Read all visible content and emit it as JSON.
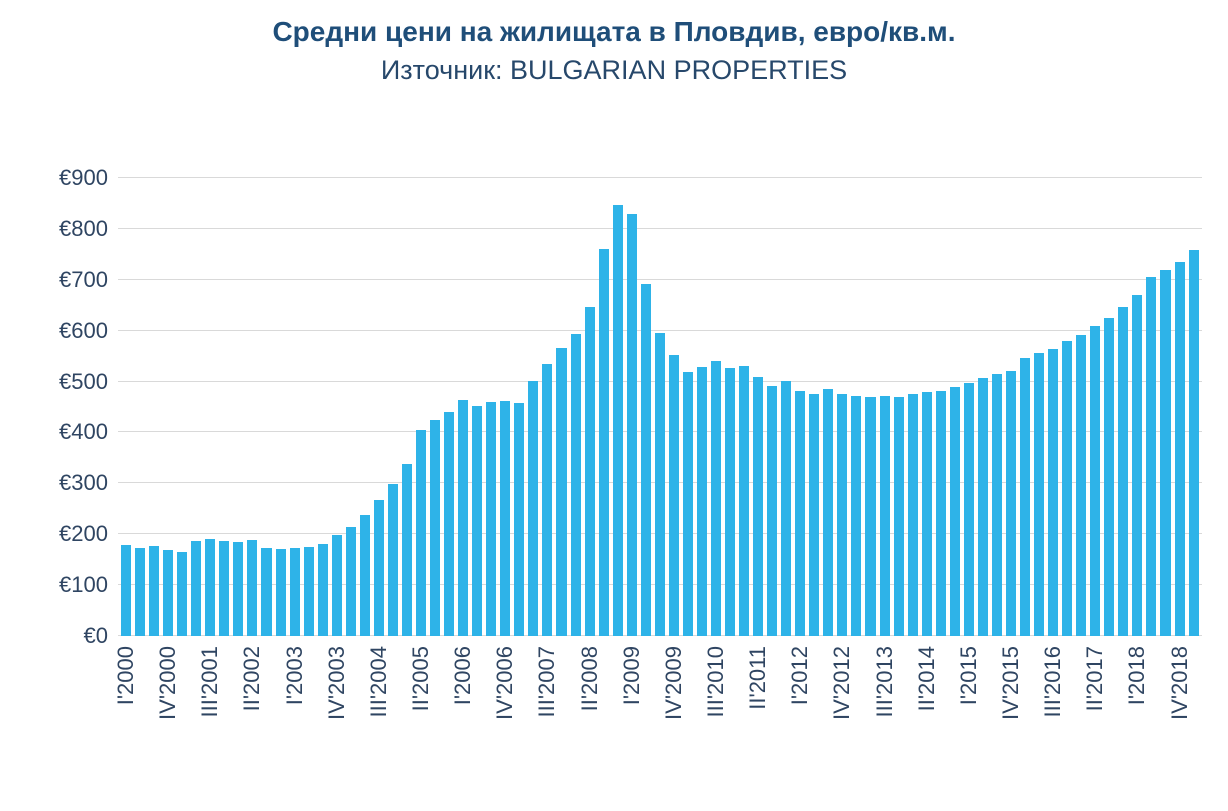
{
  "colors": {
    "bar": "#2EB3E8",
    "title": "#1F4E79",
    "tick_label": "#2F4562",
    "gridline": "#D9D9D9",
    "background": "#FFFFFF"
  },
  "chart_data": {
    "type": "bar",
    "title": "Средни цени на жилищата в Пловдив, евро/кв.м.",
    "subtitle": "Източник: BULGARIAN PROPERTIES",
    "currency_prefix": "€",
    "ylabel": "",
    "xlabel": "",
    "ylim": [
      0,
      900
    ],
    "y_ticks": [
      0,
      100,
      200,
      300,
      400,
      500,
      600,
      700,
      800,
      900
    ],
    "y_tick_labels": [
      "€0",
      "€100",
      "€200",
      "€300",
      "€400",
      "€500",
      "€600",
      "€700",
      "€800",
      "€900"
    ],
    "grid": "horizontal",
    "legend": "none",
    "x_tick_every": 3,
    "x_tick_labels": [
      "I'2000",
      "IV'2000",
      "III'2001",
      "II'2002",
      "I'2003",
      "IV'2003",
      "III'2004",
      "II'2005",
      "I'2006",
      "IV'2006",
      "III'2007",
      "II'2008",
      "I'2009",
      "IV'2009",
      "III'2010",
      "II'2011",
      "I'2012",
      "IV'2012",
      "III'2013",
      "II'2014",
      "I'2015",
      "IV'2015",
      "III'2016",
      "II'2017",
      "I'2018",
      "IV'2018"
    ],
    "categories": [
      "I'2000",
      "II'2000",
      "III'2000",
      "IV'2000",
      "I'2001",
      "II'2001",
      "III'2001",
      "IV'2001",
      "I'2002",
      "II'2002",
      "III'2002",
      "IV'2002",
      "I'2003",
      "II'2003",
      "III'2003",
      "IV'2003",
      "I'2004",
      "II'2004",
      "III'2004",
      "IV'2004",
      "I'2005",
      "II'2005",
      "III'2005",
      "IV'2005",
      "I'2006",
      "II'2006",
      "III'2006",
      "IV'2006",
      "I'2007",
      "II'2007",
      "III'2007",
      "IV'2007",
      "I'2008",
      "II'2008",
      "III'2008",
      "IV'2008",
      "I'2009",
      "II'2009",
      "III'2009",
      "IV'2009",
      "I'2010",
      "II'2010",
      "III'2010",
      "IV'2010",
      "I'2011",
      "II'2011",
      "III'2011",
      "IV'2011",
      "I'2012",
      "II'2012",
      "III'2012",
      "IV'2012",
      "I'2013",
      "II'2013",
      "III'2013",
      "IV'2013",
      "I'2014",
      "II'2014",
      "III'2014",
      "IV'2014",
      "I'2015",
      "II'2015",
      "III'2015",
      "IV'2015",
      "I'2016",
      "II'2016",
      "III'2016",
      "IV'2016",
      "I'2017",
      "II'2017",
      "III'2017",
      "IV'2017",
      "I'2018",
      "II'2018",
      "III'2018",
      "IV'2018",
      "I'2019"
    ],
    "values": [
      178,
      173,
      176,
      170,
      166,
      187,
      191,
      186,
      184,
      188,
      173,
      171,
      172,
      175,
      180,
      198,
      214,
      238,
      268,
      299,
      339,
      404,
      425,
      441,
      464,
      452,
      459,
      462,
      458,
      501,
      535,
      565,
      594,
      646,
      761,
      846,
      830,
      691,
      595,
      552,
      519,
      528,
      541,
      527,
      531,
      509,
      491,
      501,
      482,
      475,
      486,
      475,
      472,
      470,
      472,
      470,
      475,
      479,
      482,
      490,
      497,
      507,
      514,
      521,
      547,
      556,
      564,
      580,
      591,
      610,
      625,
      647,
      670,
      705,
      720,
      735,
      758
    ]
  }
}
